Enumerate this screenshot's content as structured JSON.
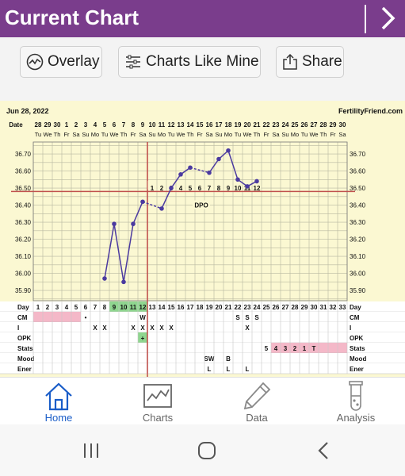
{
  "header": {
    "title": "Current Chart",
    "next_icon": "chevron-right-icon"
  },
  "toolbar": {
    "overlay_label": "Overlay",
    "charts_like_mine_label": "Charts Like Mine",
    "share_label": "Share"
  },
  "chart": {
    "date_label": "Jun 28, 2022",
    "brand": "FertilityFriend.com",
    "date_row_label": "Date",
    "dates": [
      "28",
      "29",
      "30",
      "1",
      "2",
      "3",
      "4",
      "5",
      "6",
      "7",
      "8",
      "9",
      "10",
      "11",
      "12",
      "13",
      "14",
      "15",
      "16",
      "17",
      "18",
      "19",
      "20",
      "21",
      "22",
      "23",
      "24",
      "25",
      "26",
      "27",
      "28",
      "29",
      "30"
    ],
    "weekdays": [
      "Tu",
      "We",
      "Th",
      "Fr",
      "Sa",
      "Su",
      "Mo",
      "Tu",
      "We",
      "Th",
      "Fr",
      "Sa",
      "Su",
      "Mo",
      "Tu",
      "We",
      "Th",
      "Fr",
      "Sa",
      "Su",
      "Mo",
      "Tu",
      "We",
      "Th",
      "Fr",
      "Sa",
      "Su",
      "Mo",
      "Tu",
      "We",
      "Th",
      "Fr",
      "Sa"
    ],
    "temp_labels": [
      "36.70",
      "36.60",
      "36.50",
      "36.40",
      "36.30",
      "36.20",
      "36.10",
      "36.00",
      "35.90"
    ],
    "dpo_numbers": [
      "1",
      "2",
      "3",
      "4",
      "5",
      "6",
      "7",
      "8",
      "9",
      "10",
      "11",
      "12"
    ],
    "dpo_label": "DPO",
    "coverline": 36.48,
    "ovulation_day": 12,
    "rows": {
      "day_label": "Day",
      "days": [
        "1",
        "2",
        "3",
        "4",
        "5",
        "6",
        "7",
        "8",
        "9",
        "10",
        "11",
        "12",
        "13",
        "14",
        "15",
        "16",
        "17",
        "18",
        "19",
        "20",
        "21",
        "22",
        "23",
        "24",
        "25",
        "26",
        "27",
        "28",
        "29",
        "30",
        "31",
        "32",
        "33"
      ],
      "cm_label": "CM",
      "cm_values": [
        "",
        "",
        "",
        "",
        "",
        "•",
        "",
        "",
        "",
        "",
        "",
        "W",
        "",
        "",
        "",
        "",
        "",
        "",
        "",
        "",
        "",
        "S",
        "S",
        "S",
        "",
        "",
        "",
        "",
        "",
        "",
        "",
        "",
        ""
      ],
      "i_label": "I",
      "i_values": [
        "",
        "",
        "",
        "",
        "",
        "",
        "X",
        "X",
        "",
        "",
        "X",
        "X",
        "X",
        "X",
        "X",
        "",
        "",
        "",
        "",
        "",
        "",
        "",
        "X",
        "",
        "",
        "",
        "",
        "",
        "",
        "",
        "",
        "",
        ""
      ],
      "opk_label": "OPK",
      "opk_values": [
        "",
        "",
        "",
        "",
        "",
        "",
        "",
        "",
        "",
        "",
        "",
        "+",
        "",
        "",
        "",
        "",
        "",
        "",
        "",
        "",
        "",
        "",
        "",
        "",
        "",
        "",
        "",
        "",
        "",
        "",
        "",
        "",
        ""
      ],
      "stats_label": "Stats",
      "stats_values": [
        "",
        "",
        "",
        "",
        "",
        "",
        "",
        "",
        "",
        "",
        "",
        "",
        "",
        "",
        "",
        "",
        "",
        "",
        "",
        "",
        "",
        "",
        "",
        "",
        "5",
        "4",
        "3",
        "2",
        "1",
        "T",
        "",
        "",
        ""
      ],
      "mood_label": "Mood",
      "mood_values": [
        "",
        "",
        "",
        "",
        "",
        "",
        "",
        "",
        "",
        "",
        "",
        "",
        "",
        "",
        "",
        "",
        "",
        "",
        "SW",
        "",
        "B",
        "",
        "",
        "",
        "",
        "",
        "",
        "",
        "",
        "",
        "",
        "",
        ""
      ],
      "ener_label": "Ener",
      "ener_values": [
        "",
        "",
        "",
        "",
        "",
        "",
        "",
        "",
        "",
        "",
        "",
        "",
        "",
        "",
        "",
        "",
        "",
        "",
        "L",
        "",
        "L",
        "",
        "L",
        "",
        "",
        "",
        "",
        "",
        "",
        "",
        "",
        "",
        ""
      ]
    }
  },
  "chart_data": {
    "type": "line",
    "x": [
      8,
      9,
      10,
      11,
      12,
      14,
      15,
      16,
      17,
      19,
      20,
      21,
      22,
      23,
      24
    ],
    "y": [
      35.97,
      36.29,
      35.95,
      36.29,
      36.42,
      36.38,
      36.5,
      36.58,
      36.62,
      36.59,
      36.67,
      36.72,
      36.55,
      36.51,
      36.54
    ],
    "ylim": [
      35.84,
      36.77
    ],
    "xlabel": "Day",
    "ylabel": "",
    "grid": true
  },
  "nav": {
    "items": [
      {
        "label": "Home",
        "icon": "home-icon",
        "active": true
      },
      {
        "label": "Charts",
        "icon": "chart-icon",
        "active": false
      },
      {
        "label": "Data",
        "icon": "pencil-icon",
        "active": false
      },
      {
        "label": "Analysis",
        "icon": "test-tube-icon",
        "active": false
      }
    ]
  },
  "system_bar": {
    "recent": "recent-apps-icon",
    "home": "home-circle-icon",
    "back": "back-icon"
  }
}
